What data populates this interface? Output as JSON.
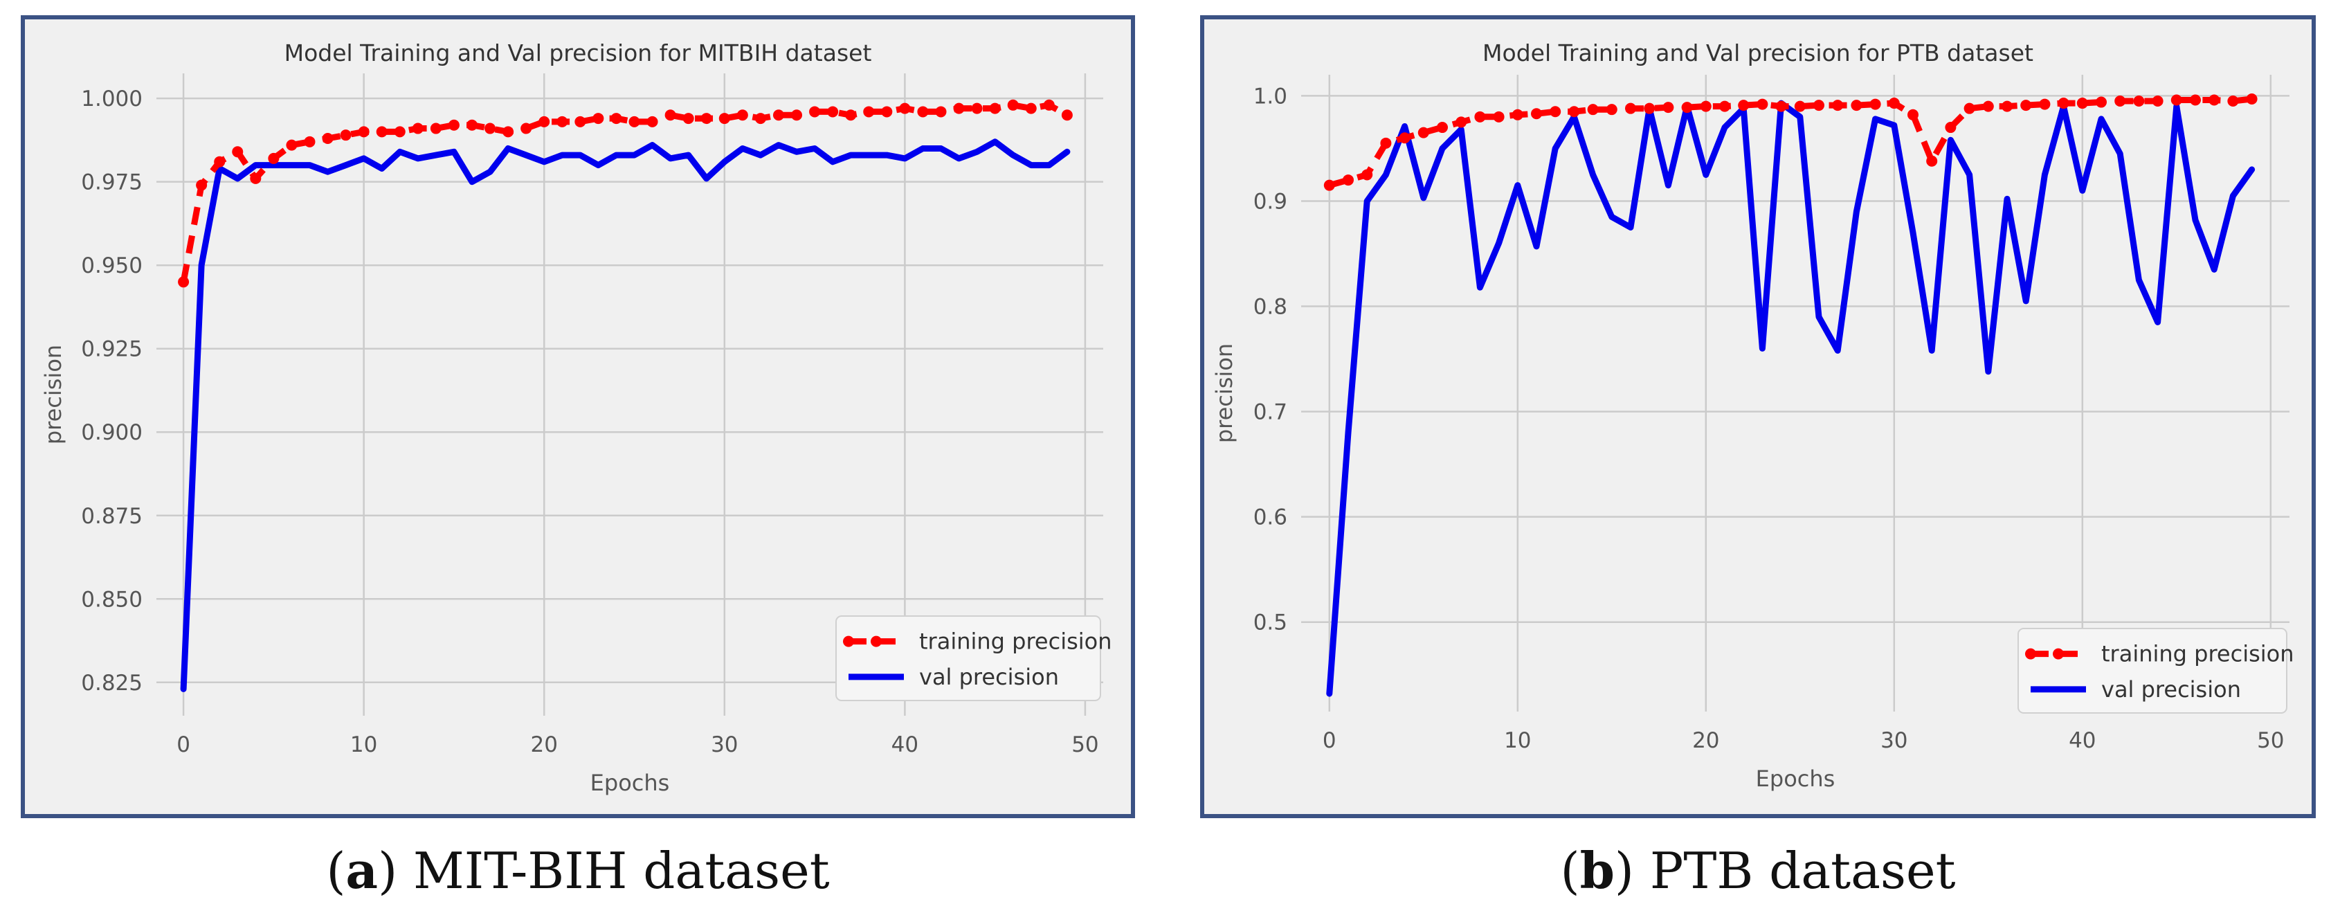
{
  "figure": {
    "panels": [
      {
        "letter": "a",
        "text": "MIT-BIH dataset"
      },
      {
        "letter": "b",
        "text": "PTB dataset"
      }
    ]
  },
  "colors": {
    "training": "#ff0000",
    "val": "#0000ee",
    "plot_bg": "#f0f0f0",
    "grid": "#cbcbcb",
    "frame": "#3b5284",
    "text": "#555555"
  },
  "chart_data": [
    {
      "type": "line",
      "title": "Model Training and Val precision for MITBIH dataset",
      "xlabel": "Epochs",
      "ylabel": "precision",
      "xlim": [
        -1.5,
        51
      ],
      "ylim": [
        0.815,
        1.0075
      ],
      "xticks": [
        0,
        10,
        20,
        30,
        40,
        50
      ],
      "yticks": [
        0.825,
        0.85,
        0.875,
        0.9,
        0.925,
        0.95,
        0.975,
        1.0
      ],
      "yticklabels": [
        "0.825",
        "0.850",
        "0.875",
        "0.900",
        "0.925",
        "0.950",
        "0.975",
        "1.000"
      ],
      "grid": true,
      "legend_position": "lower-right",
      "x": [
        0,
        1,
        2,
        3,
        4,
        5,
        6,
        7,
        8,
        9,
        10,
        11,
        12,
        13,
        14,
        15,
        16,
        17,
        18,
        19,
        20,
        21,
        22,
        23,
        24,
        25,
        26,
        27,
        28,
        29,
        30,
        31,
        32,
        33,
        34,
        35,
        36,
        37,
        38,
        39,
        40,
        41,
        42,
        43,
        44,
        45,
        46,
        47,
        48,
        49
      ],
      "series": [
        {
          "name": "training precision",
          "style": "dashed-markers",
          "values": [
            0.945,
            0.974,
            0.981,
            0.984,
            0.976,
            0.982,
            0.986,
            0.987,
            0.988,
            0.989,
            0.99,
            0.99,
            0.99,
            0.991,
            0.991,
            0.992,
            0.992,
            0.991,
            0.99,
            0.991,
            0.993,
            0.993,
            0.993,
            0.994,
            0.994,
            0.993,
            0.993,
            0.995,
            0.994,
            0.994,
            0.994,
            0.995,
            0.994,
            0.995,
            0.995,
            0.996,
            0.996,
            0.995,
            0.996,
            0.996,
            0.997,
            0.996,
            0.996,
            0.997,
            0.997,
            0.997,
            0.998,
            0.997,
            0.998,
            0.995
          ]
        },
        {
          "name": "val precision",
          "style": "solid",
          "values": [
            0.823,
            0.95,
            0.979,
            0.976,
            0.98,
            0.98,
            0.98,
            0.98,
            0.978,
            0.98,
            0.982,
            0.979,
            0.984,
            0.982,
            0.983,
            0.984,
            0.975,
            0.978,
            0.985,
            0.983,
            0.981,
            0.983,
            0.983,
            0.98,
            0.983,
            0.983,
            0.986,
            0.982,
            0.983,
            0.976,
            0.981,
            0.985,
            0.983,
            0.986,
            0.984,
            0.985,
            0.981,
            0.983,
            0.983,
            0.983,
            0.982,
            0.985,
            0.985,
            0.982,
            0.984,
            0.987,
            0.983,
            0.98,
            0.98,
            0.984
          ]
        }
      ]
    },
    {
      "type": "line",
      "title": "Model Training and Val precision for PTB dataset",
      "xlabel": "Epochs",
      "ylabel": "precision",
      "xlim": [
        -1.5,
        51
      ],
      "ylim": [
        0.415,
        1.02
      ],
      "xticks": [
        0,
        10,
        20,
        30,
        40,
        50
      ],
      "yticks": [
        0.5,
        0.6,
        0.7,
        0.8,
        0.9,
        1.0
      ],
      "yticklabels": [
        "0.5",
        "0.6",
        "0.7",
        "0.8",
        "0.9",
        "1.0"
      ],
      "grid": true,
      "legend_position": "lower-right",
      "x": [
        0,
        1,
        2,
        3,
        4,
        5,
        6,
        7,
        8,
        9,
        10,
        11,
        12,
        13,
        14,
        15,
        16,
        17,
        18,
        19,
        20,
        21,
        22,
        23,
        24,
        25,
        26,
        27,
        28,
        29,
        30,
        31,
        32,
        33,
        34,
        35,
        36,
        37,
        38,
        39,
        40,
        41,
        42,
        43,
        44,
        45,
        46,
        47,
        48,
        49
      ],
      "series": [
        {
          "name": "training precision",
          "style": "dashed-markers",
          "values": [
            0.915,
            0.92,
            0.925,
            0.955,
            0.96,
            0.965,
            0.97,
            0.975,
            0.98,
            0.98,
            0.982,
            0.983,
            0.985,
            0.985,
            0.987,
            0.987,
            0.988,
            0.988,
            0.989,
            0.989,
            0.99,
            0.99,
            0.991,
            0.992,
            0.99,
            0.99,
            0.991,
            0.991,
            0.991,
            0.992,
            0.993,
            0.982,
            0.938,
            0.97,
            0.988,
            0.99,
            0.99,
            0.991,
            0.992,
            0.993,
            0.993,
            0.994,
            0.995,
            0.995,
            0.995,
            0.996,
            0.996,
            0.996,
            0.995,
            0.997
          ]
        },
        {
          "name": "val precision",
          "style": "solid",
          "values": [
            0.432,
            0.68,
            0.9,
            0.925,
            0.971,
            0.903,
            0.95,
            0.968,
            0.818,
            0.86,
            0.915,
            0.857,
            0.95,
            0.98,
            0.925,
            0.885,
            0.875,
            0.988,
            0.915,
            0.99,
            0.925,
            0.97,
            0.988,
            0.76,
            0.993,
            0.98,
            0.79,
            0.758,
            0.89,
            0.978,
            0.972,
            0.87,
            0.758,
            0.958,
            0.925,
            0.738,
            0.902,
            0.805,
            0.925,
            0.99,
            0.91,
            0.978,
            0.945,
            0.825,
            0.785,
            0.99,
            0.882,
            0.835,
            0.905,
            0.93
          ]
        }
      ]
    }
  ]
}
